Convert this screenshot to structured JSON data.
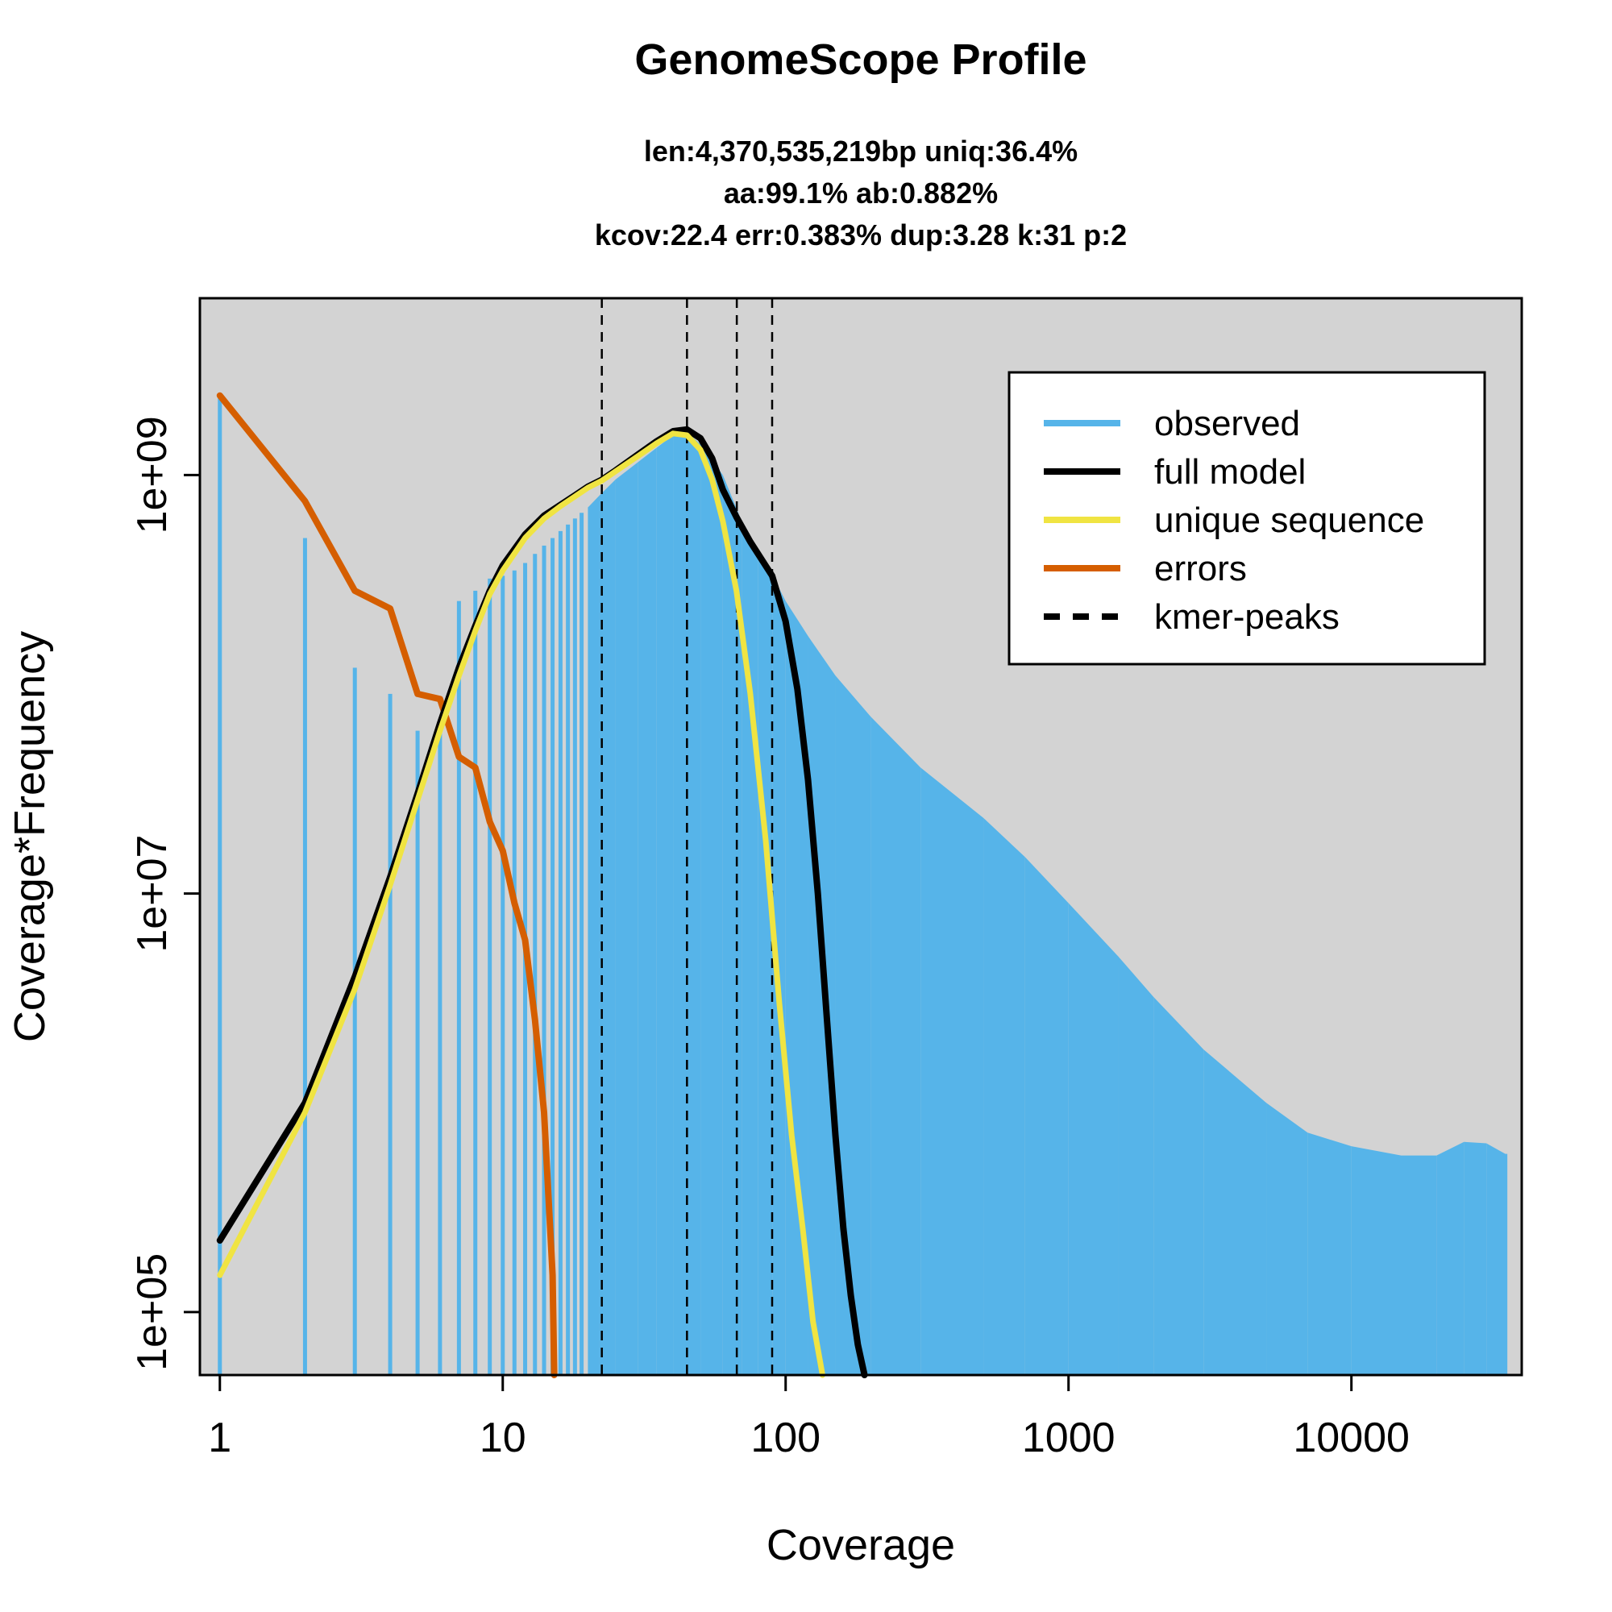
{
  "chart_data": {
    "type": "line",
    "title": "GenomeScope Profile",
    "subtitle_lines": [
      "len:4,370,535,219bp uniq:36.4%",
      "aa:99.1% ab:0.882%",
      "kcov:22.4 err:0.383%  dup:3.28  k:31 p:2"
    ],
    "xlabel": "Coverage",
    "ylabel": "Coverage*Frequency",
    "x_scale": "log",
    "y_scale": "log",
    "xlim": [
      0.85,
      40000
    ],
    "ylim": [
      50000,
      7000000000
    ],
    "x_ticks": [
      {
        "value": 1,
        "label": "1"
      },
      {
        "value": 10,
        "label": "10"
      },
      {
        "value": 100,
        "label": "100"
      },
      {
        "value": 1000,
        "label": "1000"
      },
      {
        "value": 10000,
        "label": "10000"
      }
    ],
    "y_ticks": [
      {
        "value": 100000,
        "label": "1e+05"
      },
      {
        "value": 10000000,
        "label": "1e+07"
      },
      {
        "value": 1000000000,
        "label": "1e+09"
      }
    ],
    "plot_background": "#d3d3d3",
    "legend_position": "top-right",
    "colors": {
      "observed": "#56b4e9",
      "full_model": "#000000",
      "unique_sequence": "#f0e442",
      "errors": "#d55e00",
      "kmer_peaks": "#000000"
    },
    "legend": [
      {
        "key": "observed",
        "label": "observed",
        "style": "solid"
      },
      {
        "key": "full_model",
        "label": "full model",
        "style": "solid"
      },
      {
        "key": "unique_sequence",
        "label": "unique sequence",
        "style": "solid"
      },
      {
        "key": "errors",
        "label": "errors",
        "style": "solid"
      },
      {
        "key": "kmer_peaks",
        "label": "kmer-peaks",
        "style": "dashed"
      }
    ],
    "kmer_peaks": [
      22.4,
      44.8,
      67.2,
      89.6
    ],
    "series": [
      {
        "name": "observed",
        "render": "bars",
        "x": [
          1,
          2,
          3,
          4,
          5,
          6,
          7,
          8,
          9,
          10,
          11,
          12,
          13,
          14,
          15,
          16,
          17,
          18,
          19,
          20,
          22,
          25,
          30,
          35,
          40,
          45,
          50,
          60,
          70,
          80,
          90,
          100,
          120,
          150,
          200,
          300,
          500,
          700,
          1000,
          1500,
          2000,
          3000,
          5000,
          7000,
          10000,
          15000,
          20000,
          25000,
          30000,
          35000
        ],
        "y": [
          2400000000,
          500000000,
          120000000,
          90000000,
          60000000,
          60000000,
          250000000,
          280000000,
          320000000,
          330000000,
          350000000,
          380000000,
          420000000,
          460000000,
          500000000,
          540000000,
          580000000,
          620000000,
          660000000,
          700000000,
          800000000,
          950000000,
          1150000000,
          1350000000,
          1550000000,
          1600000000,
          1400000000,
          1000000000,
          600000000,
          420000000,
          330000000,
          250000000,
          170000000,
          110000000,
          70000000,
          40000000,
          23000000,
          15000000,
          9000000,
          5000000,
          3200000,
          1800000,
          1000000,
          720000,
          620000,
          560000,
          560000,
          650000,
          640000,
          570000
        ]
      },
      {
        "name": "full model",
        "render": "line",
        "x": [
          1,
          2,
          3,
          4,
          5,
          6,
          7,
          8,
          9,
          10,
          12,
          14,
          16,
          18,
          20,
          22.4,
          25,
          30,
          35,
          40,
          44.8,
          50,
          55,
          60,
          67,
          75,
          89.6,
          100,
          110,
          120,
          130,
          140,
          150,
          160,
          170,
          180,
          190
        ],
        "y": [
          220000,
          1000000,
          4000000,
          12000000,
          30000000,
          65000000,
          120000000,
          190000000,
          280000000,
          370000000,
          520000000,
          640000000,
          720000000,
          800000000,
          880000000,
          950000000,
          1050000000,
          1250000000,
          1450000000,
          1620000000,
          1650000000,
          1500000000,
          1200000000,
          850000000,
          630000000,
          480000000,
          330000000,
          200000000,
          95000000,
          35000000,
          10000000,
          2500000,
          700000,
          250000,
          120000,
          70000,
          50000
        ]
      },
      {
        "name": "unique sequence",
        "render": "line",
        "x": [
          1,
          2,
          3,
          4,
          5,
          6,
          7,
          8,
          9,
          10,
          12,
          14,
          16,
          18,
          20,
          22.4,
          25,
          30,
          35,
          40,
          44.8,
          50,
          55,
          60,
          67,
          75,
          85,
          95,
          105,
          115,
          125,
          135
        ],
        "y": [
          150000,
          900000,
          3500000,
          11000000,
          28000000,
          60000000,
          110000000,
          180000000,
          270000000,
          350000000,
          500000000,
          620000000,
          710000000,
          790000000,
          870000000,
          940000000,
          1040000000,
          1230000000,
          1420000000,
          1580000000,
          1550000000,
          1320000000,
          950000000,
          600000000,
          280000000,
          90000000,
          18000000,
          3000000,
          700000,
          250000,
          90000,
          50000
        ]
      },
      {
        "name": "errors",
        "render": "line",
        "x": [
          1,
          2,
          3,
          4,
          5,
          6,
          7,
          8,
          9,
          10,
          11,
          12,
          13,
          14,
          15,
          15.2
        ],
        "y": [
          2400000000,
          750000000,
          280000000,
          230000000,
          90000000,
          85000000,
          45000000,
          40000000,
          22000000,
          16000000,
          9000000,
          6000000,
          2500000,
          900000,
          150000,
          50000
        ]
      }
    ]
  }
}
